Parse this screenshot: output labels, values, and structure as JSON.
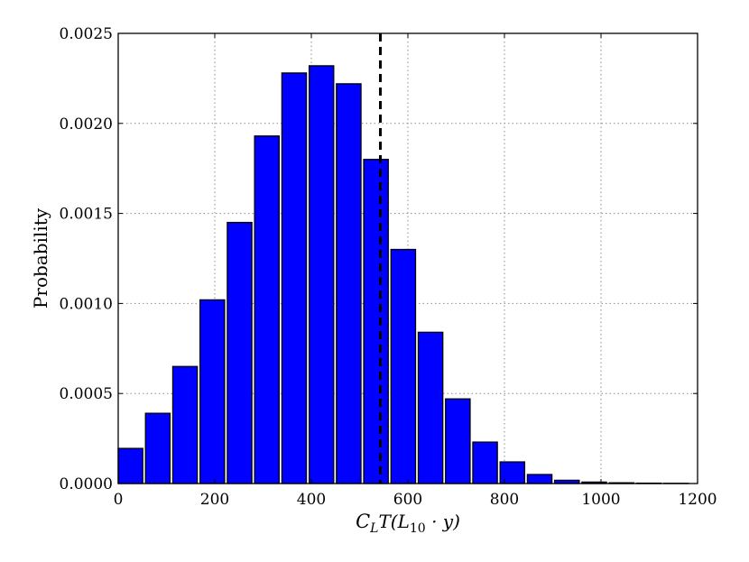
{
  "chart_data": {
    "type": "bar",
    "title": "",
    "xlabel": "C_L T(L_10 · y)",
    "xlabel_parts": {
      "script": "C",
      "sub1": "L",
      "mid": "T(L",
      "sub2": "10",
      "end": " · y)"
    },
    "ylabel": "Probability",
    "xlim": [
      0,
      1200
    ],
    "ylim": [
      0,
      0.0025
    ],
    "x_ticks": [
      0,
      200,
      400,
      600,
      800,
      1000,
      1200
    ],
    "x_tick_labels": [
      "0",
      "200",
      "400",
      "600",
      "800",
      "1000",
      "1200"
    ],
    "y_ticks": [
      0,
      0.0005,
      0.001,
      0.0015,
      0.002,
      0.0025
    ],
    "y_tick_labels": [
      "0.0000",
      "0.0005",
      "0.0010",
      "0.0015",
      "0.0020",
      "0.0025"
    ],
    "grid": true,
    "bin_width": 56.5,
    "bar_width_fraction": 0.9,
    "bins_left": [
      0,
      56.5,
      113,
      169.5,
      226,
      282.5,
      339,
      395.5,
      452,
      508.5,
      565,
      621.5,
      678,
      734.5,
      791,
      847.5,
      904,
      960.5,
      1017,
      1073.5,
      1130
    ],
    "values": [
      0.000195,
      0.00039,
      0.00065,
      0.00102,
      0.00145,
      0.00193,
      0.00228,
      0.00232,
      0.00222,
      0.0018,
      0.0013,
      0.00084,
      0.00047,
      0.00023,
      0.00012,
      5e-05,
      1.8e-05,
      8e-06,
      4e-06,
      2e-06,
      1e-06
    ],
    "reference_line_x": 543,
    "reference_line_style": "dashed",
    "bar_color": "#0000ff"
  }
}
